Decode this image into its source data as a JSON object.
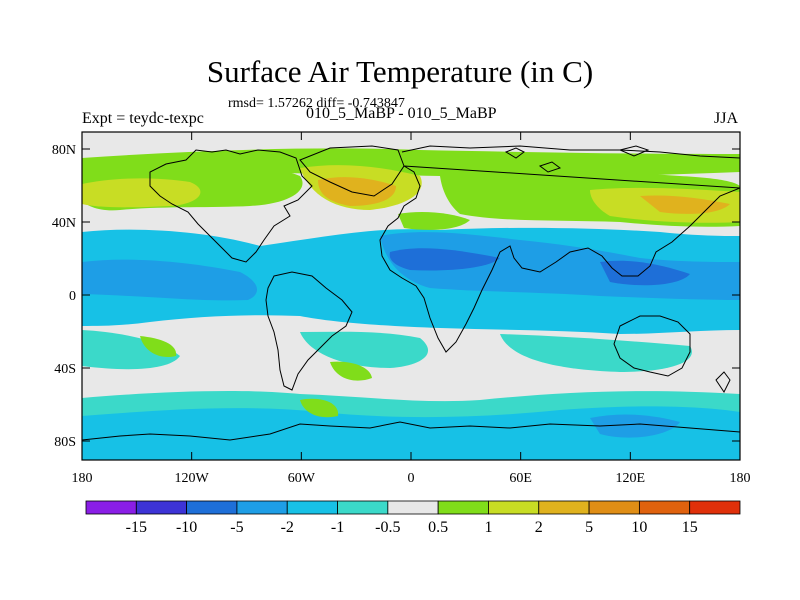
{
  "title": "Surface Air Temperature (in C)",
  "stats_line": "rmsd= 1.57262 diff= -0.743847",
  "experiment": "Expt = teydc-texpc",
  "run_label": "010_5_MaBP - 010_5_MaBP",
  "season": "JJA",
  "axes": {
    "lon_ticks": [
      "180",
      "120W",
      "60W",
      "0",
      "60E",
      "120E",
      "180"
    ],
    "lat_ticks": [
      "80N",
      "40N",
      "0",
      "40S",
      "80S"
    ]
  },
  "colorbar": {
    "labels": [
      "-15",
      "-10",
      "-5",
      "-2",
      "-1",
      "-0.5",
      "0.5",
      "1",
      "2",
      "5",
      "10",
      "15"
    ],
    "colors": [
      "#8a1ee6",
      "#3d33d6",
      "#1e6fd8",
      "#1e9ee6",
      "#17c1e6",
      "#3bd9c9",
      "#e8e8e8",
      "#80dd1a",
      "#c8dd24",
      "#e0b21e",
      "#e08e16",
      "#e0620e",
      "#e0300a"
    ]
  },
  "palette": {
    "neutral": "#e8e8e8",
    "cool_1": "#3bd9c9",
    "cool_2": "#17c1e6",
    "cool_3": "#1e9ee6",
    "cool_4": "#1e6fd8",
    "warm_1": "#80dd1a",
    "warm_2": "#c8dd24",
    "warm_3": "#e0b21e",
    "coast": "#000000"
  }
}
